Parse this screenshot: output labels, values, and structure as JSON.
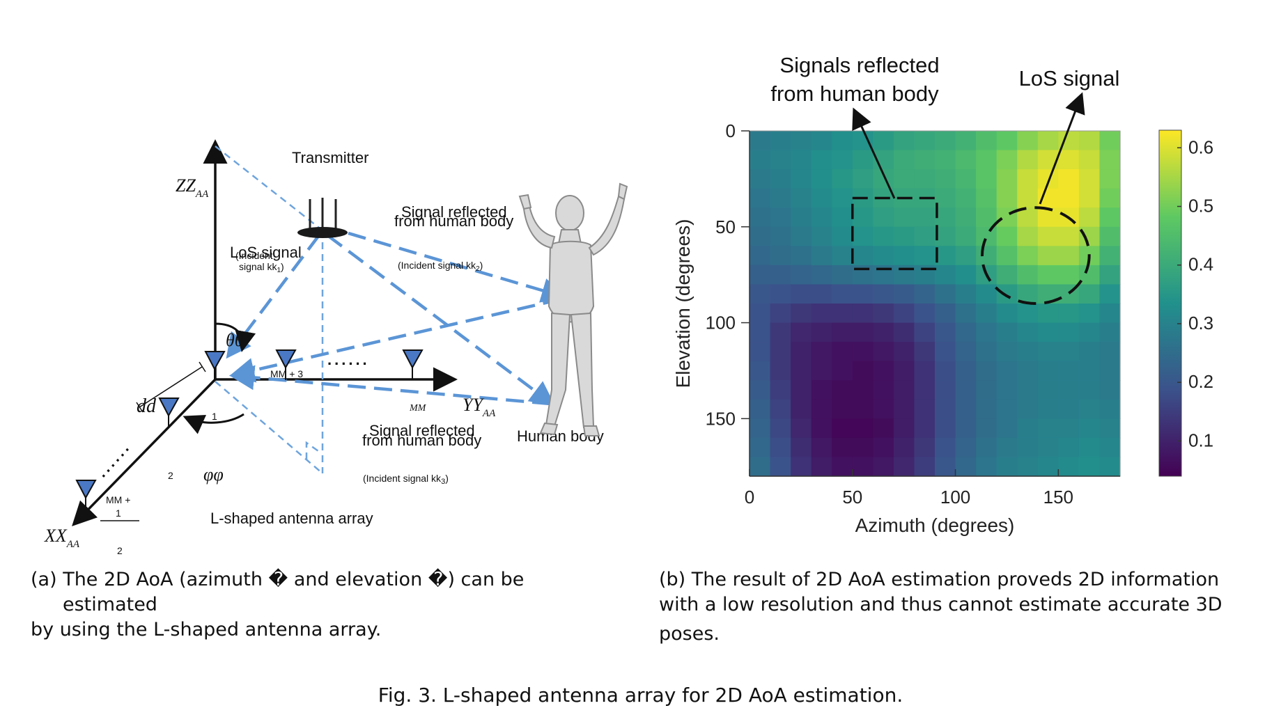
{
  "panel_a": {
    "transmitter_label": "Transmitter",
    "z_axis_label": "ZZ",
    "z_axis_sub": "AA",
    "y_axis_label": "YY",
    "y_axis_sub": "AA",
    "x_axis_label": "XX",
    "x_axis_sub": "AA",
    "los_label": "LoS signal",
    "los_incident_1": "(Incident",
    "los_incident_2": "signal kk",
    "los_incident_sub": "1",
    "los_incident_close": ")",
    "reflect_top_1": "Signal reflected",
    "reflect_top_2": "from human body",
    "incident_2": "(Incident signal kk",
    "incident_2_sub": "2",
    "incident_2_close": ")",
    "reflect_bottom_1": "Signal reflected",
    "reflect_bottom_2": "from human body",
    "incident_3": "(Incident   signal  kk",
    "incident_3_sub": "3",
    "incident_3_close": ")",
    "human_body_label": "Human body",
    "array_label": "L-shaped antenna array",
    "theta_label": "θθ",
    "phi_label": "φφ",
    "d_label": "dd",
    "mm3_label": "MM + 3",
    "mm_label": "MM",
    "mm1_label": "MM +",
    "one_label": "1",
    "two_label": "2",
    "dots": "......"
  },
  "captions": {
    "a_line1": "(a)  The 2D AoA (azimuth � and elevation �) can be",
    "a_line2": "estimated",
    "a_line3": "by using the L-shaped antenna array.",
    "b_line1": "(b)  The result of 2D AoA estimation proveds 2D information",
    "b_line2": "with a low resolution and thus cannot estimate accurate 3D",
    "b_line3": "poses.",
    "fig": "Fig. 3.  L-shaped antenna array for 2D AoA estimation."
  },
  "chart_data": {
    "type": "heatmap",
    "title": "",
    "xlabel": "Azimuth (degrees)",
    "ylabel": "Elevation (degrees)",
    "xlim": [
      0,
      180
    ],
    "ylim": [
      0,
      180
    ],
    "x_ticks": [
      0,
      50,
      100,
      150
    ],
    "y_ticks": [
      0,
      50,
      100,
      150
    ],
    "colorbar": {
      "range": [
        0.04,
        0.63
      ],
      "ticks": [
        0.1,
        0.2,
        0.3,
        0.4,
        0.5,
        0.6
      ]
    },
    "colormap": [
      "#440154",
      "#3b528b",
      "#21918c",
      "#5ec962",
      "#fde725"
    ],
    "grid_step_deg": 10,
    "values": [
      [
        0.28,
        0.29,
        0.3,
        0.31,
        0.33,
        0.34,
        0.36,
        0.38,
        0.39,
        0.4,
        0.42,
        0.45,
        0.48,
        0.52,
        0.55,
        0.57,
        0.56,
        0.5
      ],
      [
        0.29,
        0.3,
        0.31,
        0.33,
        0.34,
        0.36,
        0.38,
        0.4,
        0.41,
        0.42,
        0.44,
        0.47,
        0.51,
        0.56,
        0.59,
        0.6,
        0.58,
        0.51
      ],
      [
        0.28,
        0.29,
        0.31,
        0.33,
        0.35,
        0.37,
        0.39,
        0.4,
        0.4,
        0.41,
        0.43,
        0.47,
        0.52,
        0.58,
        0.61,
        0.62,
        0.59,
        0.51
      ],
      [
        0.27,
        0.28,
        0.3,
        0.32,
        0.34,
        0.36,
        0.38,
        0.39,
        0.39,
        0.4,
        0.42,
        0.46,
        0.52,
        0.58,
        0.62,
        0.62,
        0.59,
        0.5
      ],
      [
        0.26,
        0.27,
        0.29,
        0.31,
        0.33,
        0.35,
        0.37,
        0.38,
        0.38,
        0.39,
        0.41,
        0.45,
        0.51,
        0.57,
        0.61,
        0.61,
        0.57,
        0.48
      ],
      [
        0.25,
        0.26,
        0.28,
        0.3,
        0.32,
        0.34,
        0.35,
        0.36,
        0.37,
        0.38,
        0.4,
        0.44,
        0.49,
        0.55,
        0.58,
        0.58,
        0.54,
        0.45
      ],
      [
        0.24,
        0.25,
        0.26,
        0.28,
        0.3,
        0.31,
        0.32,
        0.33,
        0.34,
        0.35,
        0.37,
        0.41,
        0.46,
        0.51,
        0.54,
        0.54,
        0.5,
        0.42
      ],
      [
        0.22,
        0.22,
        0.23,
        0.24,
        0.25,
        0.26,
        0.27,
        0.28,
        0.29,
        0.31,
        0.33,
        0.37,
        0.41,
        0.45,
        0.48,
        0.48,
        0.45,
        0.38
      ],
      [
        0.2,
        0.19,
        0.18,
        0.18,
        0.19,
        0.19,
        0.2,
        0.21,
        0.23,
        0.26,
        0.29,
        0.32,
        0.36,
        0.39,
        0.41,
        0.41,
        0.39,
        0.34
      ],
      [
        0.19,
        0.16,
        0.14,
        0.13,
        0.13,
        0.13,
        0.14,
        0.16,
        0.19,
        0.22,
        0.26,
        0.29,
        0.32,
        0.34,
        0.35,
        0.35,
        0.34,
        0.31
      ],
      [
        0.19,
        0.14,
        0.11,
        0.1,
        0.09,
        0.09,
        0.1,
        0.12,
        0.16,
        0.2,
        0.24,
        0.27,
        0.29,
        0.31,
        0.32,
        0.32,
        0.31,
        0.29
      ],
      [
        0.19,
        0.14,
        0.1,
        0.08,
        0.07,
        0.07,
        0.08,
        0.1,
        0.14,
        0.19,
        0.23,
        0.26,
        0.28,
        0.29,
        0.3,
        0.3,
        0.29,
        0.28
      ],
      [
        0.2,
        0.14,
        0.1,
        0.08,
        0.07,
        0.06,
        0.07,
        0.09,
        0.13,
        0.18,
        0.22,
        0.25,
        0.27,
        0.28,
        0.29,
        0.29,
        0.29,
        0.28
      ],
      [
        0.21,
        0.15,
        0.1,
        0.07,
        0.06,
        0.06,
        0.07,
        0.09,
        0.13,
        0.18,
        0.22,
        0.25,
        0.27,
        0.28,
        0.29,
        0.29,
        0.29,
        0.28
      ],
      [
        0.22,
        0.16,
        0.1,
        0.07,
        0.06,
        0.06,
        0.07,
        0.09,
        0.13,
        0.18,
        0.22,
        0.25,
        0.27,
        0.28,
        0.29,
        0.29,
        0.3,
        0.29
      ],
      [
        0.23,
        0.17,
        0.11,
        0.07,
        0.05,
        0.05,
        0.06,
        0.09,
        0.13,
        0.18,
        0.22,
        0.25,
        0.27,
        0.29,
        0.3,
        0.3,
        0.31,
        0.3
      ],
      [
        0.24,
        0.18,
        0.12,
        0.08,
        0.06,
        0.06,
        0.07,
        0.1,
        0.14,
        0.19,
        0.23,
        0.26,
        0.28,
        0.29,
        0.3,
        0.31,
        0.32,
        0.31
      ],
      [
        0.25,
        0.19,
        0.13,
        0.09,
        0.07,
        0.07,
        0.08,
        0.11,
        0.15,
        0.2,
        0.24,
        0.27,
        0.29,
        0.3,
        0.31,
        0.32,
        0.33,
        0.32
      ]
    ],
    "annotations": {
      "reflect_line1": "Signals  reflected",
      "reflect_line2": "from human body",
      "los": "LoS signal",
      "reflect_box": {
        "azimuth": [
          50,
          91
        ],
        "elevation": [
          35,
          72
        ]
      },
      "los_ellipse": {
        "center_azimuth": 139,
        "center_elevation": 65,
        "radius_azimuth": 26,
        "radius_elevation": 25
      }
    }
  }
}
